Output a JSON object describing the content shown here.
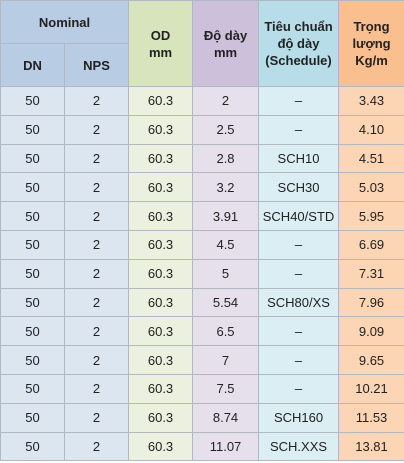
{
  "header": {
    "nominal": "Nominal",
    "dn": "DN",
    "nps": "NPS",
    "od": [
      "OD",
      "mm"
    ],
    "thickness": [
      "Độ dày",
      "mm"
    ],
    "schedule": [
      "Tiêu chuẩn",
      "độ dày",
      "(Schedule)"
    ],
    "weight": [
      "Trọng",
      "lượng",
      "Kg/m"
    ]
  },
  "table": {
    "rows": [
      [
        "50",
        "2",
        "60.3",
        "2",
        "–",
        "3.43"
      ],
      [
        "50",
        "2",
        "60.3",
        "2.5",
        "–",
        "4.10"
      ],
      [
        "50",
        "2",
        "60.3",
        "2.8",
        "SCH10",
        "4.51"
      ],
      [
        "50",
        "2",
        "60.3",
        "3.2",
        "SCH30",
        "5.03"
      ],
      [
        "50",
        "2",
        "60.3",
        "3.91",
        "SCH40/STD",
        "5.95"
      ],
      [
        "50",
        "2",
        "60.3",
        "4.5",
        "–",
        "6.69"
      ],
      [
        "50",
        "2",
        "60.3",
        "5",
        "–",
        "7.31"
      ],
      [
        "50",
        "2",
        "60.3",
        "5.54",
        "SCH80/XS",
        "7.96"
      ],
      [
        "50",
        "2",
        "60.3",
        "6.5",
        "–",
        "9.09"
      ],
      [
        "50",
        "2",
        "60.3",
        "7",
        "–",
        "9.65"
      ],
      [
        "50",
        "2",
        "60.3",
        "7.5",
        "–",
        "10.21"
      ],
      [
        "50",
        "2",
        "60.3",
        "8.74",
        "SCH160",
        "11.53"
      ],
      [
        "50",
        "2",
        "60.3",
        "11.07",
        "SCH.XXS",
        "13.81"
      ]
    ]
  }
}
